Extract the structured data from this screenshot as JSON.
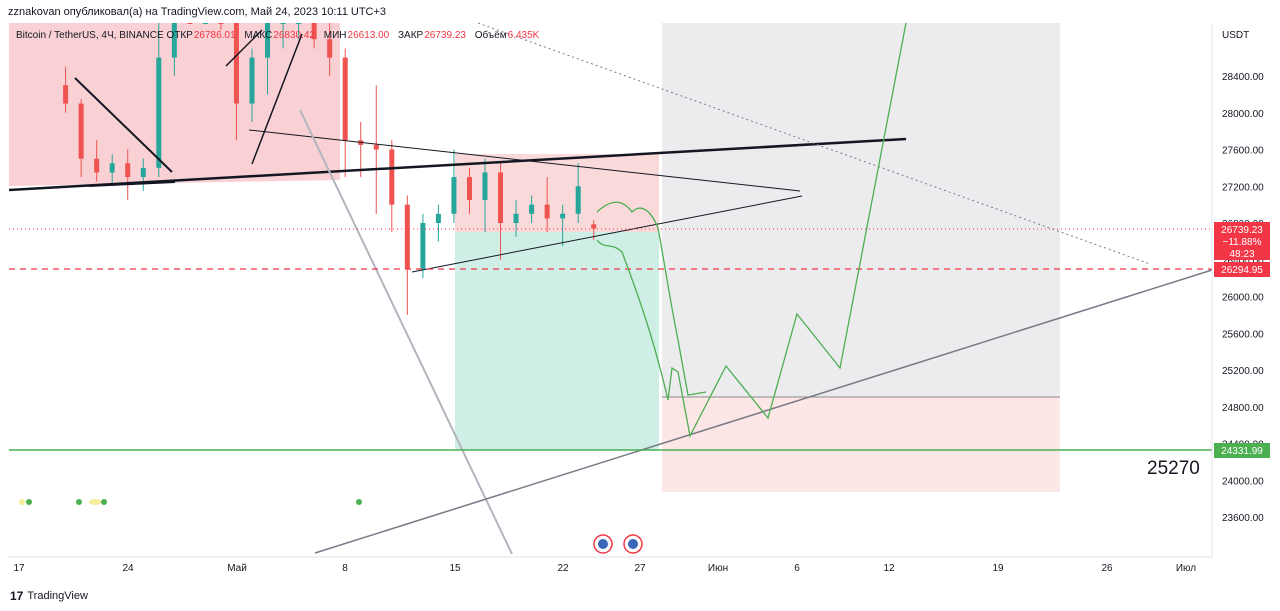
{
  "header": {
    "published_by": "zznakovan опубликовал(а) на TradingView.com, Май 24, 2023 10:11 UTC+3"
  },
  "legend": {
    "symbol": "Bitcoin / TetherUS, 4Ч, BINANCE",
    "open_label": "ОТКР",
    "open_value": "26786.01",
    "high_label": "МАКС",
    "high_value": "26830.42",
    "low_label": "МИН",
    "low_value": "26613.00",
    "close_label": "ЗАКР",
    "close_value": "26739.23",
    "volume_label": "Объём",
    "volume_value": "6.435K"
  },
  "price_axis": {
    "currency": "USDT",
    "ticks": [
      "28400.00",
      "28000.00",
      "27600.00",
      "27200.00",
      "26800.00",
      "26400.00",
      "26000.00",
      "25600.00",
      "25200.00",
      "24800.00",
      "24400.00",
      "24000.00",
      "23600.00"
    ]
  },
  "time_axis": {
    "ticks": [
      "17",
      "24",
      "Май",
      "8",
      "15",
      "22",
      "27",
      "Июн",
      "6",
      "12",
      "19",
      "26",
      "Июл"
    ]
  },
  "labels": {
    "last_price": "26739.23",
    "last_change": "−11.88%",
    "countdown": "48:23",
    "red_level": "26294.95",
    "green_level": "24331.99",
    "target": "25270"
  },
  "colors": {
    "up": "#26a69a",
    "down": "#ef5350",
    "red_line": "#f23645",
    "green_line": "#4caf50",
    "pink_zone": "#f8c9cc",
    "gray_zone": "#ececef",
    "teal_zone": "#cfeee6",
    "light_red_zone": "#fde6e6"
  },
  "footer": {
    "brand": "TradingView"
  },
  "chart_data": {
    "type": "candlestick",
    "symbol": "Bitcoin / TetherUS",
    "timeframe": "4Ч",
    "exchange": "BINANCE",
    "y_axis": {
      "unit": "USDT",
      "range": [
        23300,
        29000
      ]
    },
    "x_axis": {
      "range": [
        "2023-04-15",
        "2023-07-03"
      ]
    },
    "last": {
      "open": 26786.01,
      "high": 26830.42,
      "low": 26613.0,
      "close": 26739.23,
      "volume": "6.435K",
      "change": "−11.88%"
    },
    "candles": [
      {
        "t": "2023-04-20",
        "o": 28300,
        "h": 28500,
        "l": 28000,
        "c": 28100
      },
      {
        "t": "2023-04-21",
        "o": 28100,
        "h": 28150,
        "l": 27300,
        "c": 27500
      },
      {
        "t": "2023-04-22",
        "o": 27500,
        "h": 27700,
        "l": 27250,
        "c": 27350
      },
      {
        "t": "2023-04-23",
        "o": 27350,
        "h": 27550,
        "l": 27200,
        "c": 27450
      },
      {
        "t": "2023-04-24",
        "o": 27450,
        "h": 27600,
        "l": 27050,
        "c": 27300
      },
      {
        "t": "2023-04-25",
        "o": 27300,
        "h": 27500,
        "l": 27150,
        "c": 27400
      },
      {
        "t": "2023-04-26",
        "o": 27400,
        "h": 29300,
        "l": 27300,
        "c": 28600
      },
      {
        "t": "2023-04-27",
        "o": 28600,
        "h": 29500,
        "l": 28400,
        "c": 29300
      },
      {
        "t": "2023-04-28",
        "o": 29300,
        "h": 29400,
        "l": 29000,
        "c": 29200
      },
      {
        "t": "2023-04-29",
        "o": 29200,
        "h": 29350,
        "l": 29000,
        "c": 29250
      },
      {
        "t": "2023-04-30",
        "o": 29250,
        "h": 29400,
        "l": 28900,
        "c": 29150
      },
      {
        "t": "2023-05-01",
        "o": 29150,
        "h": 29200,
        "l": 27700,
        "c": 28100
      },
      {
        "t": "2023-05-02",
        "o": 28100,
        "h": 28700,
        "l": 27900,
        "c": 28600
      },
      {
        "t": "2023-05-03",
        "o": 28600,
        "h": 29200,
        "l": 28200,
        "c": 29000
      },
      {
        "t": "2023-05-04",
        "o": 29000,
        "h": 29200,
        "l": 28700,
        "c": 29050
      },
      {
        "t": "2023-05-05",
        "o": 29050,
        "h": 29500,
        "l": 28800,
        "c": 29400
      },
      {
        "t": "2023-05-06",
        "o": 29400,
        "h": 29600,
        "l": 28700,
        "c": 28800
      },
      {
        "t": "2023-05-07",
        "o": 28800,
        "h": 29100,
        "l": 28400,
        "c": 28600
      },
      {
        "t": "2023-05-08",
        "o": 28600,
        "h": 28700,
        "l": 27300,
        "c": 27700
      },
      {
        "t": "2023-05-09",
        "o": 27700,
        "h": 27900,
        "l": 27300,
        "c": 27650
      },
      {
        "t": "2023-05-10",
        "o": 27650,
        "h": 28300,
        "l": 26900,
        "c": 27600
      },
      {
        "t": "2023-05-11",
        "o": 27600,
        "h": 27700,
        "l": 26700,
        "c": 27000
      },
      {
        "t": "2023-05-12",
        "o": 27000,
        "h": 27100,
        "l": 25800,
        "c": 26300
      },
      {
        "t": "2023-05-13",
        "o": 26300,
        "h": 26900,
        "l": 26200,
        "c": 26800
      },
      {
        "t": "2023-05-14",
        "o": 26800,
        "h": 27000,
        "l": 26600,
        "c": 26900
      },
      {
        "t": "2023-05-15",
        "o": 26900,
        "h": 27600,
        "l": 26800,
        "c": 27300
      },
      {
        "t": "2023-05-16",
        "o": 27300,
        "h": 27400,
        "l": 26900,
        "c": 27050
      },
      {
        "t": "2023-05-17",
        "o": 27050,
        "h": 27500,
        "l": 26700,
        "c": 27350
      },
      {
        "t": "2023-05-18",
        "o": 27350,
        "h": 27450,
        "l": 26400,
        "c": 26800
      },
      {
        "t": "2023-05-19",
        "o": 26800,
        "h": 27050,
        "l": 26650,
        "c": 26900
      },
      {
        "t": "2023-05-20",
        "o": 26900,
        "h": 27100,
        "l": 26800,
        "c": 27000
      },
      {
        "t": "2023-05-21",
        "o": 27000,
        "h": 27300,
        "l": 26700,
        "c": 26850
      },
      {
        "t": "2023-05-22",
        "o": 26850,
        "h": 27000,
        "l": 26550,
        "c": 26900
      },
      {
        "t": "2023-05-23",
        "o": 26900,
        "h": 27450,
        "l": 26800,
        "c": 27200
      },
      {
        "t": "2023-05-24",
        "o": 26786.01,
        "h": 26830.42,
        "l": 26613.0,
        "c": 26739.23
      }
    ],
    "levels": [
      {
        "label": "26294.95",
        "value": 26294.95,
        "style": "dashed",
        "color": "#f23645"
      },
      {
        "label": "24331.99",
        "value": 24331.99,
        "style": "solid",
        "color": "#4caf50"
      }
    ],
    "annotations": [
      {
        "text": "25270"
      }
    ]
  }
}
